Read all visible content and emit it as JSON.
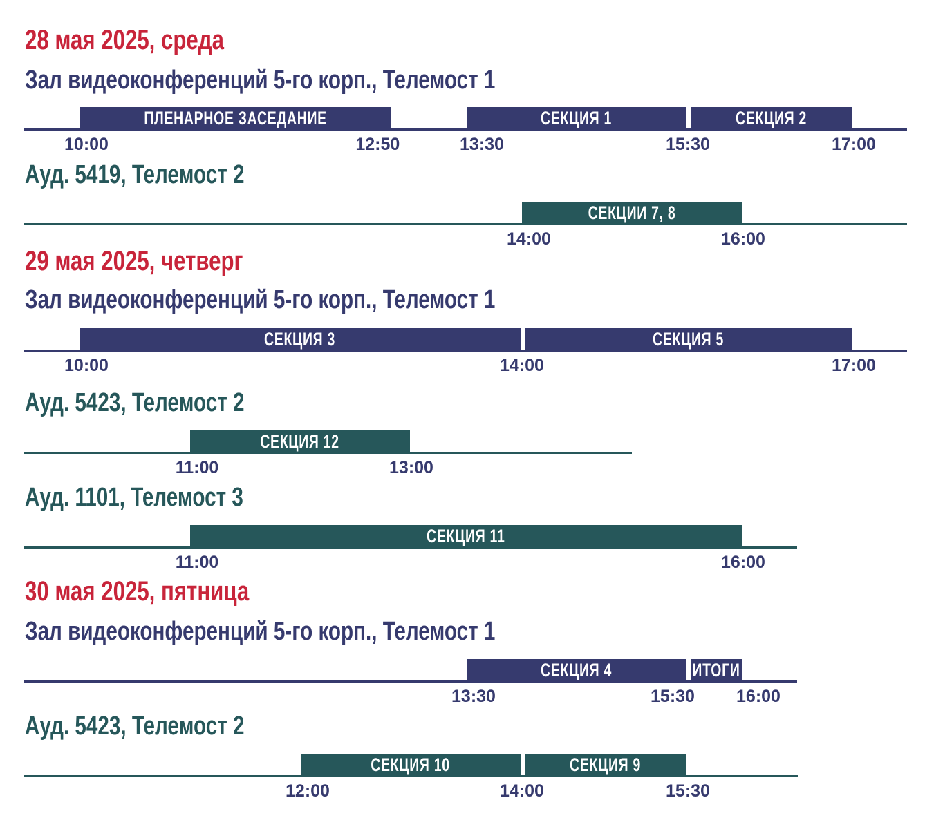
{
  "colors": {
    "day": "#c8243a",
    "hall": "#363a6e",
    "aud": "#26575a",
    "time_text": "#363a6e"
  },
  "days": [
    {
      "title": "28 мая 2025, среда",
      "venues": [
        {
          "name": "Зал видеоконференций 5-го корп., Телемост 1",
          "kind": "hall",
          "blocks": [
            {
              "label": "ПЛЕНАРНОЕ ЗАСЕДАНИЕ",
              "start": "10:00",
              "end": "12:50"
            },
            {
              "label": "СЕКЦИЯ 1",
              "start": "13:30",
              "end": "15:30"
            },
            {
              "label": "СЕКЦИЯ 2",
              "start": "15:30",
              "end": "17:00"
            }
          ],
          "times": [
            "10:00",
            "12:50",
            "13:30",
            "15:30",
            "17:00"
          ]
        },
        {
          "name": "Ауд. 5419, Телемост 2",
          "kind": "aud",
          "blocks": [
            {
              "label": "СЕКЦИИ 7, 8",
              "start": "14:00",
              "end": "16:00"
            }
          ],
          "times": [
            "14:00",
            "16:00"
          ]
        }
      ]
    },
    {
      "title": "29 мая 2025, четверг",
      "venues": [
        {
          "name": "Зал видеоконференций 5-го корп., Телемост 1",
          "kind": "hall",
          "blocks": [
            {
              "label": "СЕКЦИЯ 3",
              "start": "10:00",
              "end": "14:00"
            },
            {
              "label": "СЕКЦИЯ 5",
              "start": "14:00",
              "end": "17:00"
            }
          ],
          "times": [
            "10:00",
            "14:00",
            "17:00"
          ]
        },
        {
          "name": "Ауд. 5423, Телемост 2",
          "kind": "aud",
          "blocks": [
            {
              "label": "СЕКЦИЯ 12",
              "start": "11:00",
              "end": "13:00"
            }
          ],
          "times": [
            "11:00",
            "13:00"
          ]
        },
        {
          "name": "Ауд. 1101, Телемост 3",
          "kind": "aud",
          "blocks": [
            {
              "label": "СЕКЦИЯ 11",
              "start": "11:00",
              "end": "16:00"
            }
          ],
          "times": [
            "11:00",
            "16:00"
          ]
        }
      ]
    },
    {
      "title": "30 мая 2025, пятница",
      "venues": [
        {
          "name": "Зал видеоконференций 5-го корп., Телемост 1",
          "kind": "hall",
          "blocks": [
            {
              "label": "СЕКЦИЯ 4",
              "start": "13:30",
              "end": "15:30"
            },
            {
              "label": "ИТОГИ",
              "start": "15:30",
              "end": "16:00"
            }
          ],
          "times": [
            "13:30",
            "15:30",
            "16:00"
          ]
        },
        {
          "name": "Ауд. 5423, Телемост 2",
          "kind": "aud",
          "blocks": [
            {
              "label": "СЕКЦИЯ 10",
              "start": "12:00",
              "end": "14:00"
            },
            {
              "label": "СЕКЦИЯ 9",
              "start": "14:00",
              "end": "15:30"
            }
          ],
          "times": [
            "12:00",
            "14:00",
            "15:30"
          ]
        }
      ]
    }
  ]
}
